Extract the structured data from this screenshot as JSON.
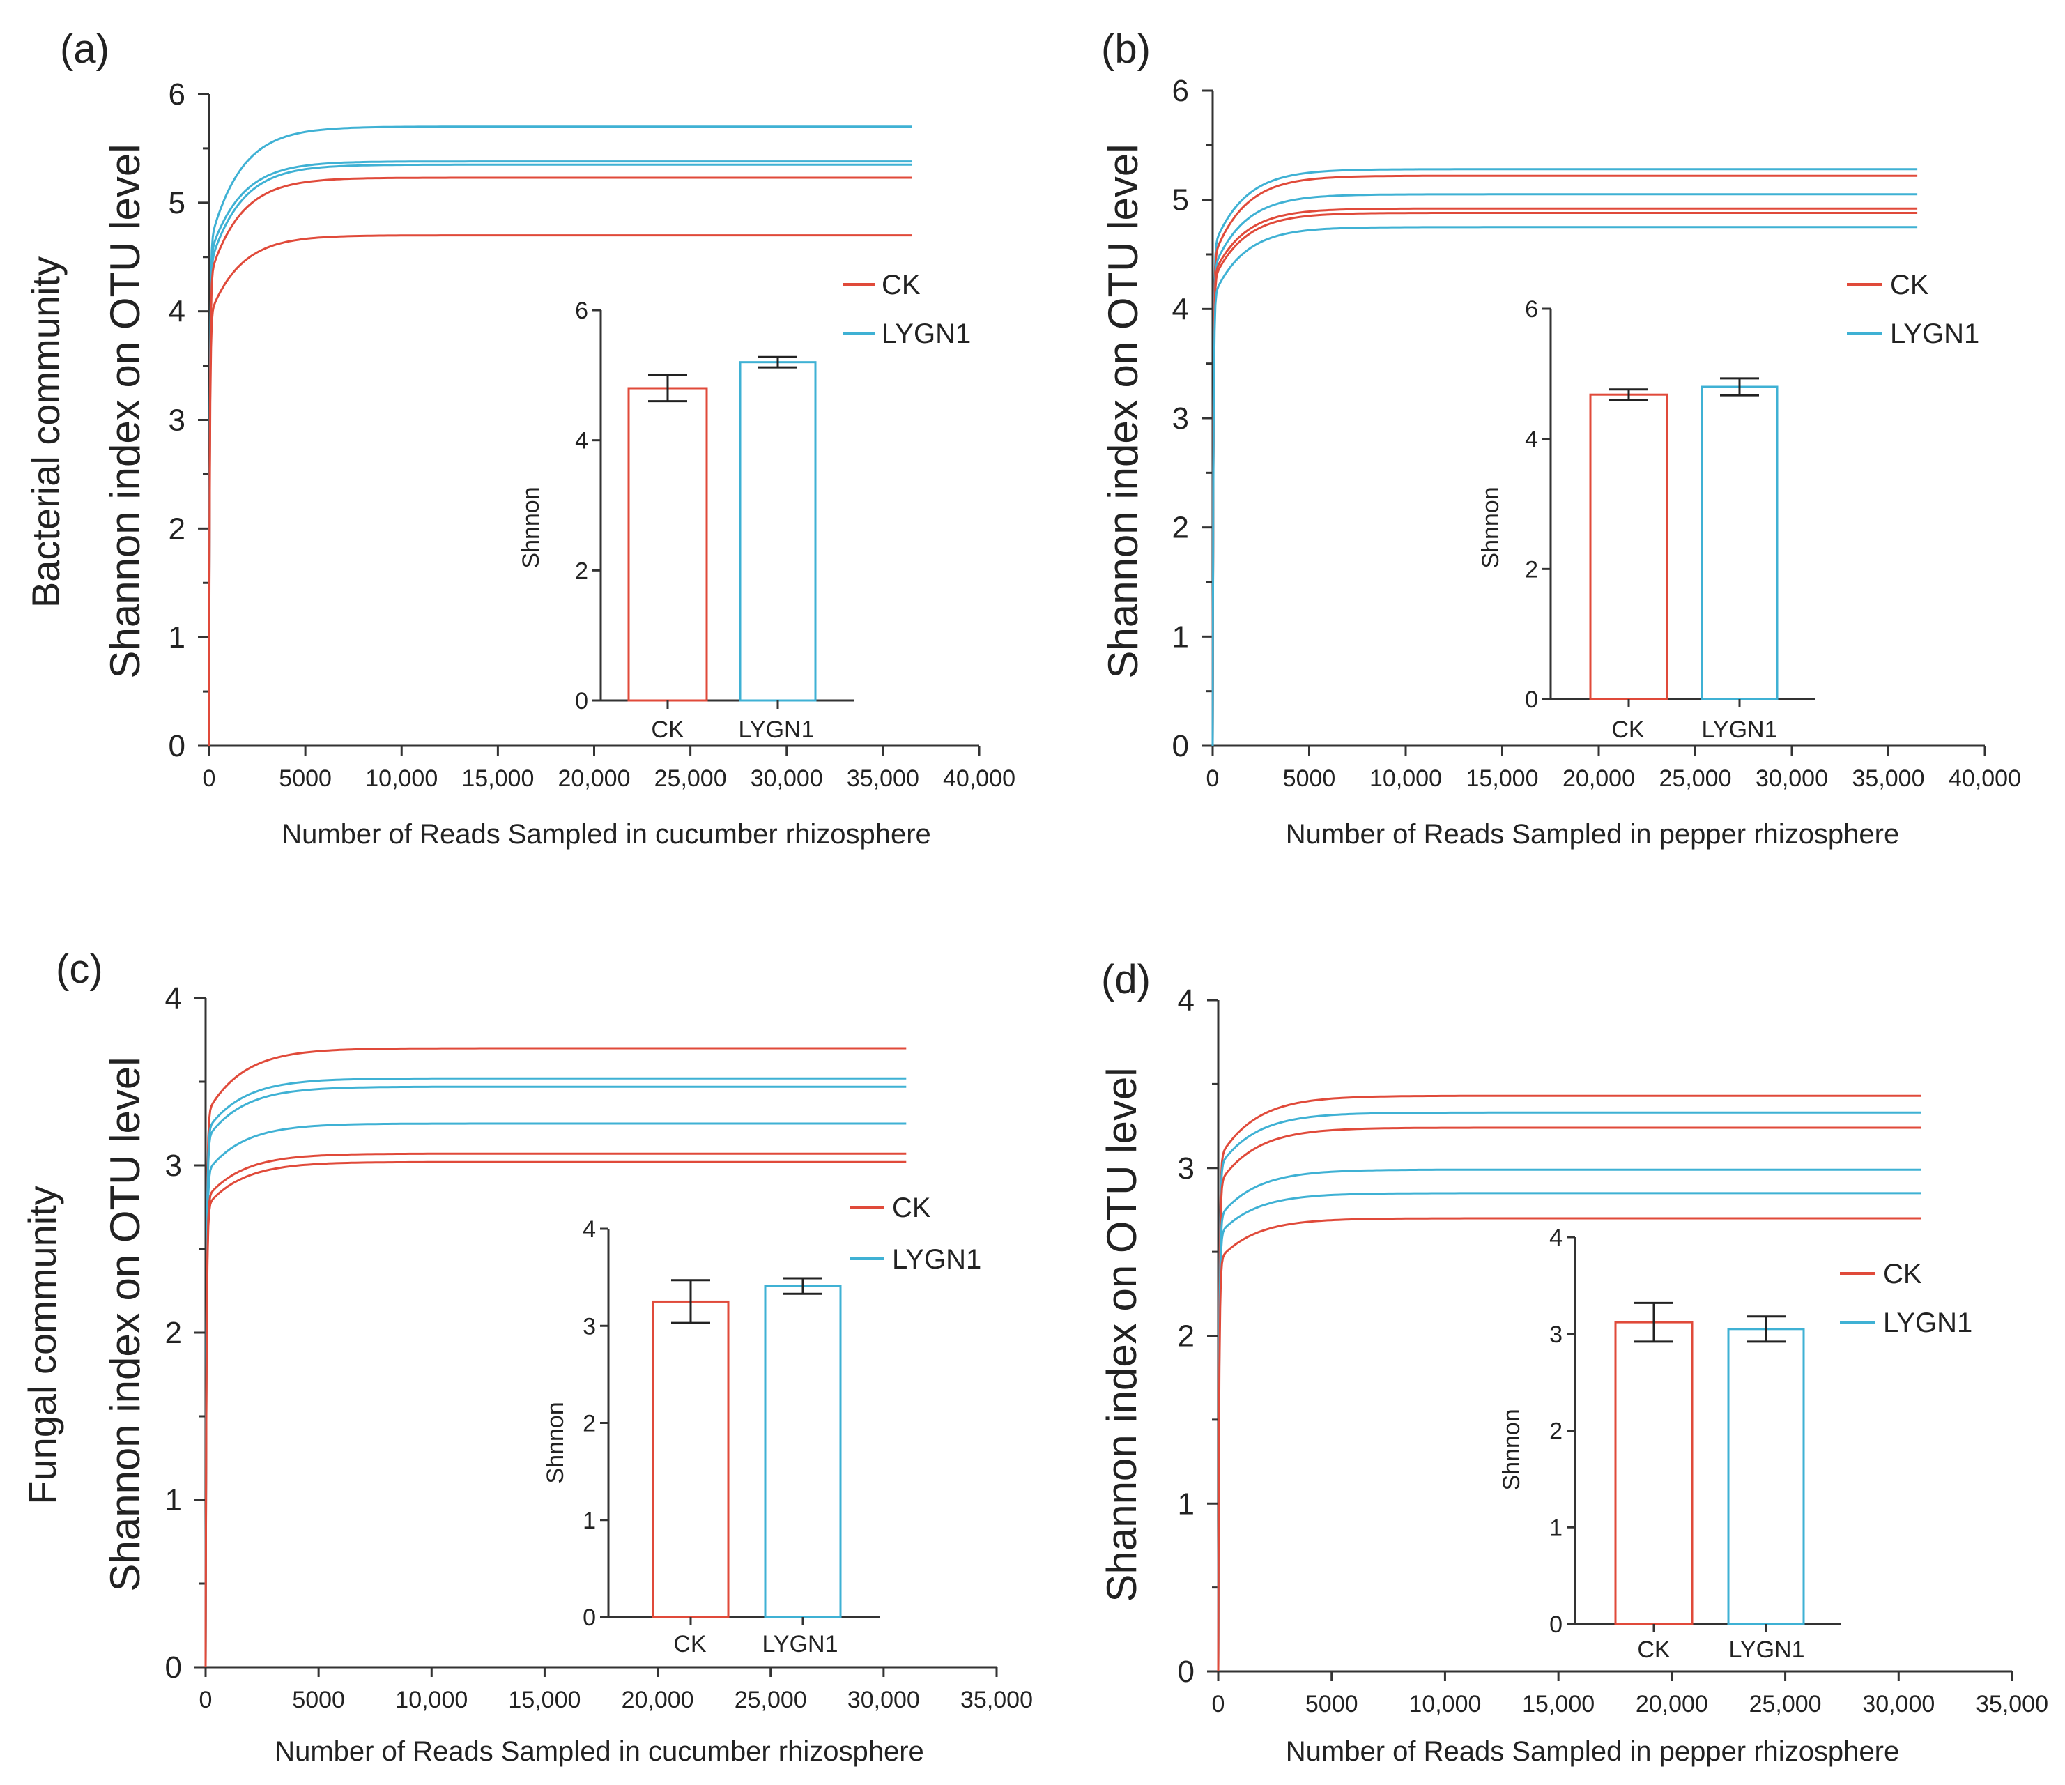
{
  "colors": {
    "ck": "#e04a3a",
    "lygn1": "#3fb1d4",
    "axis": "#333333",
    "text": "#222222"
  },
  "chart_data": [
    {
      "type": "line",
      "panel": "(a)",
      "community_label": "Bacterial community",
      "ylabel": "Shannon index on OTU level",
      "xlabel": "Number of Reads Sampled in cucumber rhizosphere",
      "ylim": [
        0,
        6
      ],
      "yticks": [
        "0",
        "1",
        "2",
        "3",
        "4",
        "5",
        "6"
      ],
      "xlim": [
        0,
        40000
      ],
      "xticks": [
        "0",
        "5000",
        "10,000",
        "15,000",
        "20,000",
        "25,000",
        "30,000",
        "35,000",
        "40,000"
      ],
      "x_end": 36500,
      "legend": [
        "CK",
        "LYGN1"
      ],
      "series": [
        {
          "group": "LYGN1",
          "plateau": 5.7,
          "start": 4.6
        },
        {
          "group": "LYGN1",
          "plateau": 5.38,
          "start": 4.5
        },
        {
          "group": "LYGN1",
          "plateau": 5.35,
          "start": 4.4
        },
        {
          "group": "CK",
          "plateau": 5.23,
          "start": 4.3
        },
        {
          "group": "CK",
          "plateau": 4.7,
          "start": 3.95
        }
      ],
      "inset": {
        "type": "bar",
        "ylabel": "Shnnon",
        "ylim": [
          0,
          6
        ],
        "yticks": [
          "0",
          "2",
          "4",
          "6"
        ],
        "categories": [
          "CK",
          "LYGN1"
        ],
        "values": [
          4.8,
          5.2
        ],
        "errors": [
          0.2,
          0.08
        ]
      }
    },
    {
      "type": "line",
      "panel": "(b)",
      "community_label": "",
      "ylabel": "Shannon index on OTU level",
      "xlabel": "Number of Reads Sampled in pepper rhizosphere",
      "ylim": [
        0,
        6
      ],
      "yticks": [
        "0",
        "1",
        "2",
        "3",
        "4",
        "5",
        "6"
      ],
      "xlim": [
        0,
        40000
      ],
      "xticks": [
        "0",
        "5000",
        "10,000",
        "15,000",
        "20,000",
        "25,000",
        "30,000",
        "35,000",
        "40,000"
      ],
      "x_end": 36500,
      "legend": [
        "CK",
        "LYGN1"
      ],
      "series": [
        {
          "group": "LYGN1",
          "plateau": 5.28,
          "start": 4.55
        },
        {
          "group": "CK",
          "plateau": 5.22,
          "start": 4.45
        },
        {
          "group": "LYGN1",
          "plateau": 5.05,
          "start": 4.35
        },
        {
          "group": "CK",
          "plateau": 4.92,
          "start": 4.3
        },
        {
          "group": "CK",
          "plateau": 4.88,
          "start": 4.25
        },
        {
          "group": "LYGN1",
          "plateau": 4.75,
          "start": 4.1
        }
      ],
      "inset": {
        "type": "bar",
        "ylabel": "Shnnon",
        "ylim": [
          0,
          6
        ],
        "yticks": [
          "0",
          "2",
          "4",
          "6"
        ],
        "categories": [
          "CK",
          "LYGN1"
        ],
        "values": [
          4.68,
          4.8
        ],
        "errors": [
          0.08,
          0.13
        ]
      }
    },
    {
      "type": "line",
      "panel": "(c)",
      "community_label": "Fungal community",
      "ylabel": "Shannon index on OTU level",
      "xlabel": "Number of Reads Sampled in cucumber rhizosphere",
      "ylim": [
        0,
        4
      ],
      "yticks": [
        "0",
        "1",
        "2",
        "3",
        "4"
      ],
      "xlim": [
        0,
        35000
      ],
      "xticks": [
        "0",
        "5000",
        "10,000",
        "15,000",
        "20,000",
        "25,000",
        "30,000",
        "35,000"
      ],
      "x_end": 31000,
      "legend": [
        "CK",
        "LYGN1"
      ],
      "series": [
        {
          "group": "CK",
          "plateau": 3.7,
          "start": 3.3
        },
        {
          "group": "LYGN1",
          "plateau": 3.52,
          "start": 3.2
        },
        {
          "group": "LYGN1",
          "plateau": 3.47,
          "start": 3.15
        },
        {
          "group": "LYGN1",
          "plateau": 3.25,
          "start": 2.95
        },
        {
          "group": "CK",
          "plateau": 3.07,
          "start": 2.8
        },
        {
          "group": "CK",
          "plateau": 3.02,
          "start": 2.75
        }
      ],
      "inset": {
        "type": "bar",
        "ylabel": "Shnnon",
        "ylim": [
          0,
          4
        ],
        "yticks": [
          "0",
          "1",
          "2",
          "3",
          "4"
        ],
        "categories": [
          "CK",
          "LYGN1"
        ],
        "values": [
          3.25,
          3.41
        ],
        "errors": [
          0.22,
          0.08
        ]
      }
    },
    {
      "type": "line",
      "panel": "(d)",
      "community_label": "",
      "ylabel": "Shannon index on OTU level",
      "xlabel": "Number of Reads Sampled in pepper rhizosphere",
      "ylim": [
        0,
        4
      ],
      "yticks": [
        "0",
        "1",
        "2",
        "3",
        "4"
      ],
      "xlim": [
        0,
        35000
      ],
      "xticks": [
        "0",
        "5000",
        "10,000",
        "15,000",
        "20,000",
        "25,000",
        "30,000",
        "35,000"
      ],
      "x_end": 31000,
      "legend": [
        "CK",
        "LYGN1"
      ],
      "series": [
        {
          "group": "CK",
          "plateau": 3.43,
          "start": 3.05
        },
        {
          "group": "LYGN1",
          "plateau": 3.33,
          "start": 3.0
        },
        {
          "group": "CK",
          "plateau": 3.24,
          "start": 2.9
        },
        {
          "group": "LYGN1",
          "plateau": 2.99,
          "start": 2.7
        },
        {
          "group": "LYGN1",
          "plateau": 2.85,
          "start": 2.6
        },
        {
          "group": "CK",
          "plateau": 2.7,
          "start": 2.45
        }
      ],
      "inset": {
        "type": "bar",
        "ylabel": "Shnnon",
        "ylim": [
          0,
          4
        ],
        "yticks": [
          "0",
          "1",
          "2",
          "3",
          "4"
        ],
        "categories": [
          "CK",
          "LYGN1"
        ],
        "values": [
          3.12,
          3.05
        ],
        "errors": [
          0.2,
          0.13
        ]
      }
    }
  ]
}
